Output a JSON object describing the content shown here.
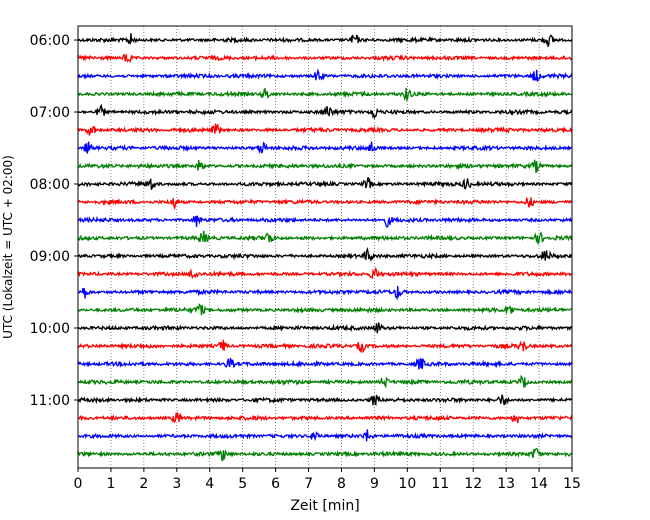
{
  "chart_data": {
    "type": "line",
    "title": "",
    "xlabel": "Zeit  [min]",
    "ylabel": "UTC (Lokalzeit = UTC + 02:00)",
    "xlim": [
      0,
      15
    ],
    "x_ticks": [
      "0",
      "1",
      "2",
      "3",
      "4",
      "5",
      "6",
      "7",
      "8",
      "9",
      "10",
      "11",
      "12",
      "13",
      "14",
      "15"
    ],
    "y_tick_labels": [
      "06:00",
      "07:00",
      "08:00",
      "09:00",
      "10:00",
      "11:00"
    ],
    "grid": "vertical dotted",
    "trace_interval_min": 15,
    "series": [
      {
        "start": "06:00",
        "color": "#000000",
        "events": [
          1.6,
          8.4,
          14.3
        ]
      },
      {
        "start": "06:15",
        "color": "#ff0000",
        "events": [
          1.5
        ]
      },
      {
        "start": "06:30",
        "color": "#0000ff",
        "events": [
          7.3,
          13.9
        ]
      },
      {
        "start": "06:45",
        "color": "#008000",
        "events": [
          5.7,
          10.0
        ]
      },
      {
        "start": "07:00",
        "color": "#000000",
        "events": [
          0.7,
          7.6,
          9.0
        ]
      },
      {
        "start": "07:15",
        "color": "#ff0000",
        "events": [
          0.4,
          4.2
        ]
      },
      {
        "start": "07:30",
        "color": "#0000ff",
        "events": [
          0.3,
          5.6,
          8.9
        ]
      },
      {
        "start": "07:45",
        "color": "#008000",
        "events": [
          3.7,
          13.9
        ]
      },
      {
        "start": "08:00",
        "color": "#000000",
        "events": [
          2.2,
          8.8,
          11.8
        ]
      },
      {
        "start": "08:15",
        "color": "#ff0000",
        "events": [
          2.9,
          13.7
        ]
      },
      {
        "start": "08:30",
        "color": "#0000ff",
        "events": [
          3.6,
          9.4
        ]
      },
      {
        "start": "08:45",
        "color": "#008000",
        "events": [
          3.8,
          5.8,
          14.0
        ]
      },
      {
        "start": "09:00",
        "color": "#000000",
        "events": [
          8.8,
          14.2
        ]
      },
      {
        "start": "09:15",
        "color": "#ff0000",
        "events": [
          3.5,
          9.0
        ]
      },
      {
        "start": "09:30",
        "color": "#0000ff",
        "events": [
          0.2,
          9.7
        ]
      },
      {
        "start": "09:45",
        "color": "#008000",
        "events": [
          3.7,
          13.1
        ]
      },
      {
        "start": "10:00",
        "color": "#000000",
        "events": [
          9.1
        ]
      },
      {
        "start": "10:15",
        "color": "#ff0000",
        "events": [
          4.4,
          8.6,
          13.5
        ]
      },
      {
        "start": "10:30",
        "color": "#0000ff",
        "events": [
          4.6,
          10.4
        ]
      },
      {
        "start": "10:45",
        "color": "#008000",
        "events": [
          9.3,
          13.5
        ]
      },
      {
        "start": "11:00",
        "color": "#000000",
        "events": [
          9.0,
          12.9
        ]
      },
      {
        "start": "11:15",
        "color": "#ff0000",
        "events": [
          3.0,
          13.3
        ]
      },
      {
        "start": "11:30",
        "color": "#0000ff",
        "events": [
          7.2,
          8.8
        ]
      },
      {
        "start": "11:45",
        "color": "#008000",
        "events": [
          4.4,
          13.9
        ]
      }
    ]
  }
}
